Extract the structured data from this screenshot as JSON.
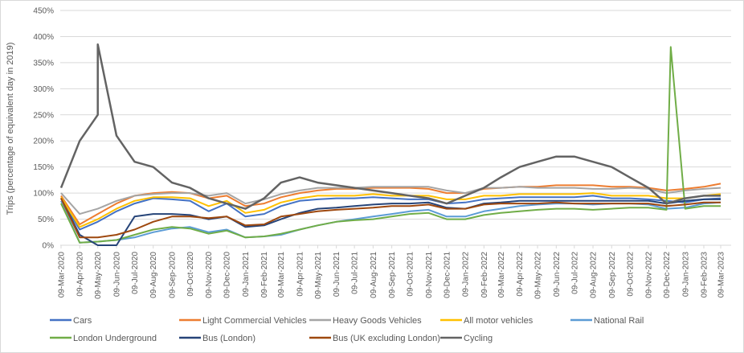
{
  "chart_data": {
    "type": "line",
    "title": "",
    "xlabel": "",
    "ylabel": "Trips (percentage of equivalent day in 2019)",
    "ylim": [
      0,
      450
    ],
    "yticks": [
      "0%",
      "50%",
      "100%",
      "150%",
      "200%",
      "250%",
      "300%",
      "350%",
      "400%",
      "450%"
    ],
    "grid": true,
    "legend_position": "bottom",
    "xtick_labels": [
      "09-Mar-2020",
      "09-Apr-2020",
      "09-May-2020",
      "09-Jun-2020",
      "09-Jul-2020",
      "09-Aug-2020",
      "09-Sep-2020",
      "09-Oct-2020",
      "09-Nov-2020",
      "09-Dec-2020",
      "09-Jan-2021",
      "09-Feb-2021",
      "09-Mar-2021",
      "09-Apr-2021",
      "09-May-2021",
      "09-Jun-2021",
      "09-Jul-2021",
      "09-Aug-2021",
      "09-Sep-2021",
      "09-Oct-2021",
      "09-Nov-2021",
      "09-Dec-2021",
      "09-Jan-2022",
      "09-Feb-2022",
      "09-Mar-2022",
      "09-Apr-2022",
      "09-May-2022",
      "09-Jun-2022",
      "09-Jul-2022",
      "09-Aug-2022",
      "09-Sep-2022",
      "09-Oct-2022",
      "09-Nov-2022",
      "09-Dec-2022",
      "09-Jan-2023",
      "09-Feb-2023",
      "09-Mar-2023"
    ],
    "x": [
      "2020-03-09",
      "2020-04-09",
      "2020-05-09",
      "2020-06-09",
      "2020-07-09",
      "2020-08-09",
      "2020-09-09",
      "2020-10-09",
      "2020-11-09",
      "2020-12-09",
      "2021-01-09",
      "2021-02-09",
      "2021-03-09",
      "2021-04-09",
      "2021-05-09",
      "2021-06-09",
      "2021-07-09",
      "2021-08-09",
      "2021-09-09",
      "2021-10-09",
      "2021-11-09",
      "2021-12-09",
      "2022-01-09",
      "2022-02-09",
      "2022-03-09",
      "2022-04-09",
      "2022-05-09",
      "2022-06-09",
      "2022-07-09",
      "2022-08-09",
      "2022-09-09",
      "2022-10-09",
      "2022-11-09",
      "2022-12-09",
      "2023-01-09",
      "2023-02-09",
      "2023-03-09"
    ],
    "series": [
      {
        "name": "Cars",
        "color": "#4472C4",
        "values": [
          90,
          30,
          45,
          65,
          80,
          90,
          88,
          85,
          65,
          80,
          55,
          60,
          75,
          85,
          88,
          90,
          90,
          92,
          90,
          88,
          88,
          80,
          82,
          88,
          90,
          92,
          92,
          92,
          92,
          95,
          90,
          90,
          88,
          85,
          82,
          88,
          90
        ]
      },
      {
        "name": "Light Commercial Vehicles",
        "color": "#ED7D31",
        "values": [
          95,
          40,
          60,
          80,
          95,
          100,
          102,
          100,
          90,
          95,
          75,
          80,
          92,
          100,
          105,
          108,
          108,
          110,
          110,
          110,
          108,
          100,
          100,
          108,
          110,
          112,
          112,
          115,
          115,
          115,
          112,
          112,
          110,
          105,
          108,
          112,
          118
        ]
      },
      {
        "name": "Heavy Goods Vehicles",
        "color": "#A5A5A5",
        "values": [
          100,
          60,
          70,
          85,
          95,
          98,
          100,
          100,
          95,
          100,
          80,
          88,
          98,
          105,
          110,
          110,
          110,
          112,
          112,
          112,
          112,
          105,
          100,
          110,
          110,
          112,
          110,
          110,
          110,
          108,
          108,
          110,
          108,
          100,
          105,
          108,
          110
        ]
      },
      {
        "name": "All motor vehicles",
        "color": "#FFC000",
        "values": [
          92,
          35,
          50,
          70,
          85,
          92,
          92,
          90,
          75,
          85,
          62,
          68,
          82,
          90,
          95,
          95,
          95,
          98,
          95,
          95,
          95,
          88,
          88,
          95,
          95,
          98,
          98,
          98,
          98,
          100,
          95,
          95,
          95,
          90,
          90,
          95,
          98
        ]
      },
      {
        "name": "National Rail",
        "color": "#5B9BD5",
        "values": [
          85,
          5,
          7,
          10,
          15,
          25,
          32,
          35,
          25,
          30,
          15,
          17,
          20,
          30,
          38,
          45,
          50,
          55,
          60,
          65,
          68,
          55,
          55,
          65,
          70,
          75,
          78,
          80,
          80,
          78,
          80,
          80,
          78,
          70,
          72,
          80,
          82
        ]
      },
      {
        "name": "London Underground",
        "color": "#70AD47",
        "values": [
          80,
          5,
          7,
          10,
          20,
          30,
          35,
          32,
          22,
          28,
          15,
          17,
          22,
          30,
          38,
          45,
          48,
          50,
          55,
          60,
          62,
          50,
          50,
          58,
          62,
          65,
          68,
          70,
          70,
          68,
          70,
          72,
          72,
          68,
          70,
          75,
          75
        ],
        "extra_points": [
          [
            "2022-12-16",
            380
          ]
        ]
      },
      {
        "name": "Bus (London)",
        "color": "#264478",
        "values": [
          90,
          20,
          0,
          0,
          55,
          60,
          60,
          58,
          50,
          55,
          35,
          38,
          50,
          62,
          70,
          72,
          75,
          78,
          80,
          80,
          82,
          72,
          70,
          80,
          82,
          85,
          85,
          85,
          85,
          85,
          85,
          85,
          85,
          80,
          85,
          88,
          88
        ]
      },
      {
        "name": "Bus (UK excluding London)",
        "color": "#9E480E",
        "values": [
          90,
          15,
          15,
          20,
          30,
          45,
          55,
          55,
          52,
          55,
          38,
          40,
          55,
          60,
          65,
          68,
          70,
          72,
          75,
          75,
          78,
          70,
          70,
          78,
          80,
          80,
          80,
          82,
          80,
          80,
          80,
          80,
          80,
          75,
          78,
          82,
          82
        ]
      },
      {
        "name": "Cycling",
        "color": "#636363",
        "values": [
          110,
          200,
          250,
          210,
          160,
          150,
          120,
          110,
          90,
          80,
          70,
          90,
          120,
          130,
          120,
          115,
          110,
          105,
          100,
          95,
          90,
          80,
          95,
          110,
          130,
          150,
          160,
          170,
          170,
          160,
          150,
          130,
          110,
          80,
          90,
          95,
          95
        ],
        "extra_points": [
          [
            "2020-05-09",
            385
          ]
        ]
      }
    ]
  }
}
